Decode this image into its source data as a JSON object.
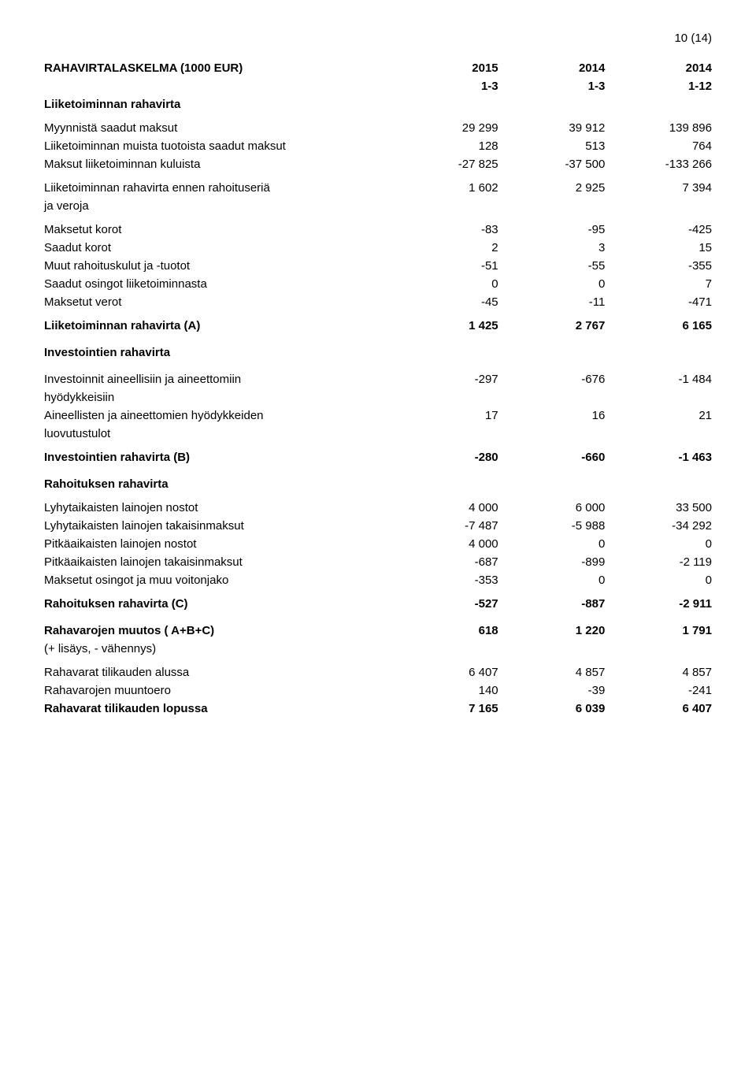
{
  "page_number": "10 (14)",
  "title": "RAHAVIRTALASKELMA (1000 EUR)",
  "header": {
    "c1": "2015",
    "c2": "2014",
    "c3": "2014"
  },
  "subheader": {
    "c1": "1-3",
    "c2": "1-3",
    "c3": "1-12"
  },
  "section1": {
    "title": "Liiketoiminnan rahavirta",
    "rows": [
      {
        "label": "Myynnistä saadut maksut",
        "c1": "29 299",
        "c2": "39 912",
        "c3": "139 896"
      },
      {
        "label": "Liiketoiminnan muista tuotoista saadut maksut",
        "c1": "128",
        "c2": "513",
        "c3": "764"
      },
      {
        "label": "Maksut liiketoiminnan kuluista",
        "c1": "-27 825",
        "c2": "-37 500",
        "c3": "-133 266"
      }
    ],
    "subtotal": {
      "l1": "Liiketoiminnan rahavirta ennen rahoituseriä",
      "l2": "ja veroja",
      "c1": "1 602",
      "c2": "2 925",
      "c3": "7 394"
    },
    "rows2": [
      {
        "label": "Maksetut korot",
        "c1": "-83",
        "c2": "-95",
        "c3": "-425"
      },
      {
        "label": "Saadut korot",
        "c1": "2",
        "c2": "3",
        "c3": "15"
      },
      {
        "label": "Muut rahoituskulut ja -tuotot",
        "c1": "-51",
        "c2": "-55",
        "c3": "-355"
      },
      {
        "label": "Saadut osingot liiketoiminnasta",
        "c1": "0",
        "c2": "0",
        "c3": "7"
      },
      {
        "label": "Maksetut verot",
        "c1": "-45",
        "c2": "-11",
        "c3": "-471"
      }
    ],
    "total": {
      "label": "Liiketoiminnan rahavirta  (A)",
      "c1": "1 425",
      "c2": "2 767",
      "c3": "6 165"
    }
  },
  "section2": {
    "title": "Investointien rahavirta",
    "rows": [
      {
        "l1": "Investoinnit aineellisiin ja aineettomiin",
        "l2": "hyödykkeisiin",
        "c1": "-297",
        "c2": "-676",
        "c3": "-1 484"
      },
      {
        "l1": "Aineellisten ja aineettomien hyödykkeiden",
        "l2": "luovutustulot",
        "c1": "17",
        "c2": "16",
        "c3": "21"
      }
    ],
    "total": {
      "label": "Investointien rahavirta  (B)",
      "c1": "-280",
      "c2": "-660",
      "c3": "-1 463"
    }
  },
  "section3": {
    "title": "Rahoituksen rahavirta",
    "rows": [
      {
        "label": "Lyhytaikaisten lainojen nostot",
        "c1": "4 000",
        "c2": "6 000",
        "c3": "33 500"
      },
      {
        "label": "Lyhytaikaisten lainojen takaisinmaksut",
        "c1": "-7 487",
        "c2": "-5 988",
        "c3": "-34 292"
      },
      {
        "label": "Pitkäaikaisten lainojen nostot",
        "c1": "4 000",
        "c2": "0",
        "c3": "0"
      },
      {
        "label": "Pitkäaikaisten lainojen takaisinmaksut",
        "c1": "-687",
        "c2": "-899",
        "c3": "-2 119"
      },
      {
        "label": "Maksetut osingot ja muu voitonjako",
        "c1": "-353",
        "c2": "0",
        "c3": "0"
      }
    ],
    "total": {
      "label": "Rahoituksen rahavirta  (C)",
      "c1": "-527",
      "c2": "-887",
      "c3": "-2 911"
    }
  },
  "section4": {
    "change": {
      "l1": "Rahavarojen muutos ( A+B+C)",
      "l2": "(+ lisäys, - vähennys)",
      "c1": "618",
      "c2": "1 220",
      "c3": "1 791"
    },
    "rows": [
      {
        "label": "Rahavarat tilikauden alussa",
        "c1": "6 407",
        "c2": "4 857",
        "c3": "4 857"
      },
      {
        "label": "Rahavarojen muuntoero",
        "c1": "140",
        "c2": "-39",
        "c3": "-241"
      }
    ],
    "end": {
      "label": "Rahavarat tilikauden lopussa",
      "c1": "7 165",
      "c2": "6 039",
      "c3": "6 407"
    }
  }
}
